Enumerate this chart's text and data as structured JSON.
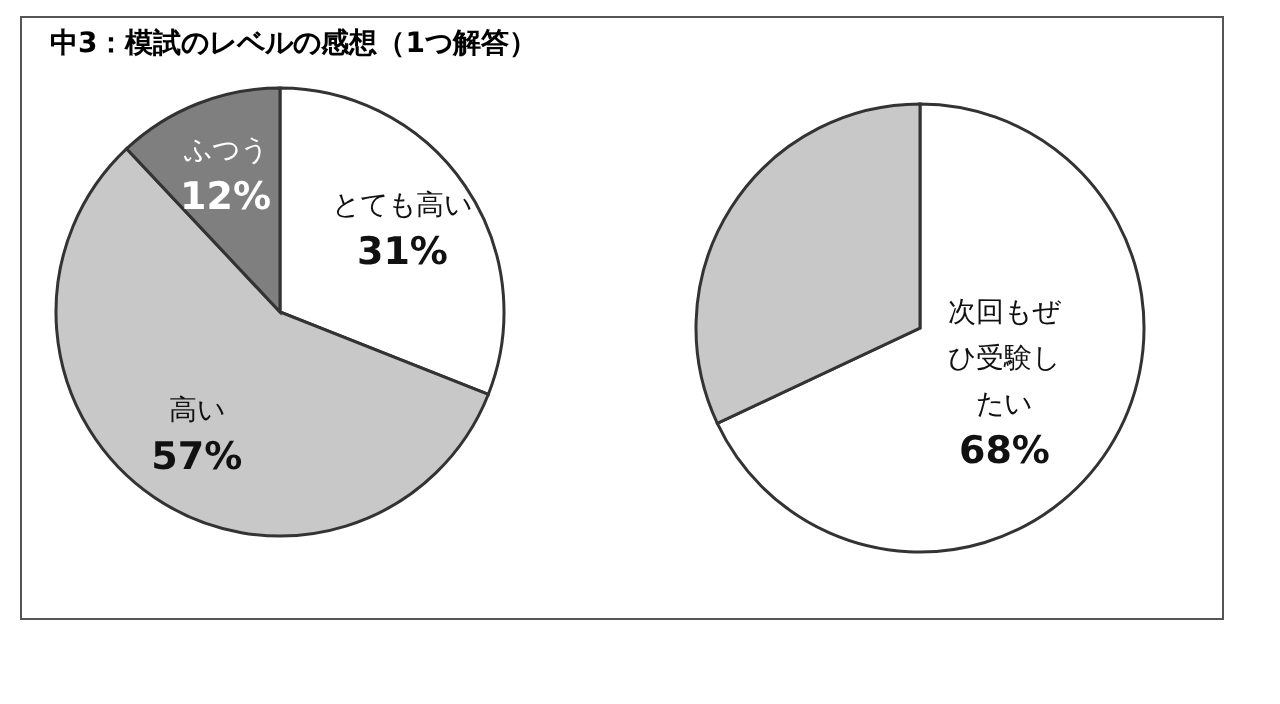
{
  "chart_data": [
    {
      "type": "pie",
      "title": "中3：模試のレベルの感想（1つ解答）",
      "categories": [
        "とても高い",
        "高い",
        "ふつう"
      ],
      "values": [
        31,
        57,
        12
      ],
      "colors": [
        "#ffffff",
        "#c8c8c8",
        "#7f7f7f"
      ],
      "value_labels": [
        "31%",
        "57%",
        "12%"
      ]
    },
    {
      "type": "pie",
      "categories": [
        "次回もぜひ受験したい",
        null
      ],
      "values": [
        68,
        32
      ],
      "colors": [
        "#ffffff",
        "#c8c8c8"
      ],
      "value_labels": [
        "68%",
        null
      ]
    }
  ]
}
